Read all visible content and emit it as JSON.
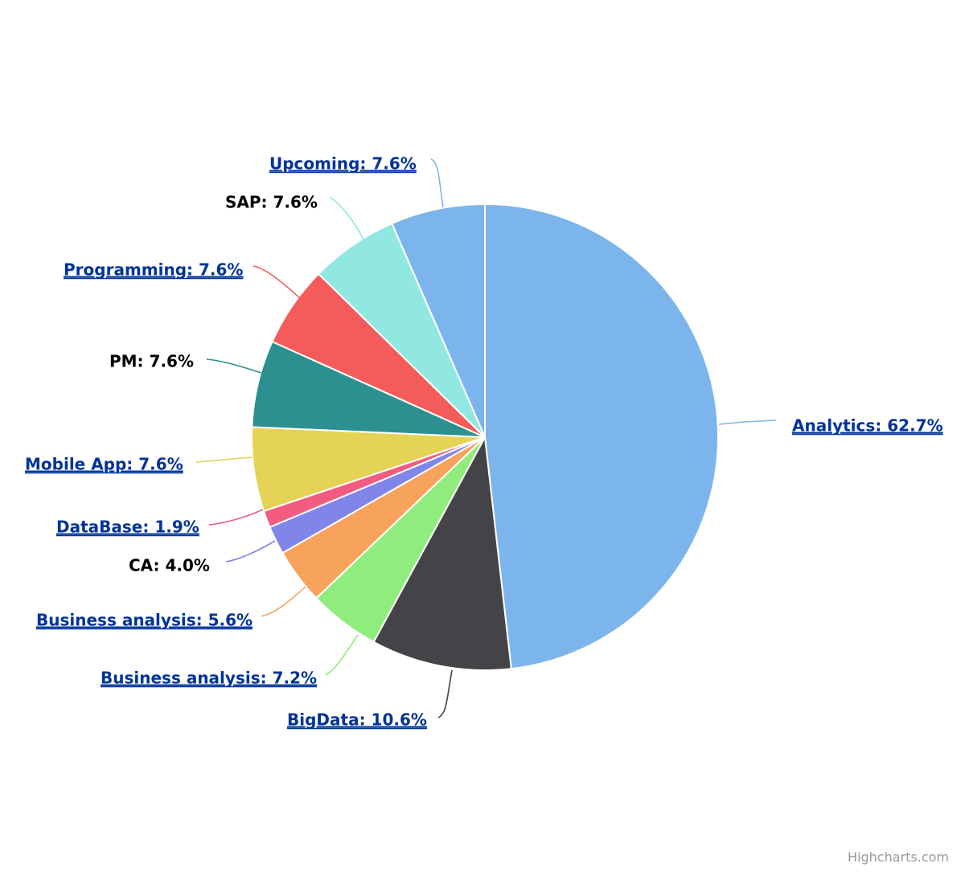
{
  "chart_data": {
    "type": "pie",
    "title": "",
    "slices": [
      {
        "name": "Analytics",
        "value": 62.7,
        "color": "#7cb5ec",
        "link": true
      },
      {
        "name": "BigData",
        "value": 10.6,
        "color": "#434348",
        "link": true
      },
      {
        "name": "Business analysis",
        "value": 7.2,
        "color": "#90ed7d",
        "link": true
      },
      {
        "name": "Business analysis",
        "value": 5.6,
        "color": "#f7a35c",
        "link": true
      },
      {
        "name": "CA",
        "value": 4.0,
        "color": "#8085e9",
        "link": false
      },
      {
        "name": "DataBase",
        "value": 1.9,
        "color": "#f15c80",
        "link": true
      },
      {
        "name": "Mobile App",
        "value": 7.6,
        "color": "#e4d354",
        "link": true
      },
      {
        "name": "PM",
        "value": 7.6,
        "color": "#2b908f",
        "link": false
      },
      {
        "name": "Programming",
        "value": 7.6,
        "color": "#f45b5b",
        "link": true
      },
      {
        "name": "SAP",
        "value": 7.6,
        "color": "#91e8e1",
        "link": false
      },
      {
        "name": "Upcoming",
        "value": 7.6,
        "color": "#7cb5ec",
        "link": true
      }
    ],
    "data_labels": [
      "Analytics: 62.7%",
      "BigData: 10.6%",
      "Business analysis: 7.2%",
      "Business analysis: 5.6%",
      "CA: 4.0%",
      "DataBase: 1.9%",
      "Mobile App: 7.6%",
      "PM: 7.6%",
      "Programming: 7.6%",
      "SAP: 7.6%",
      "Upcoming: 7.6%"
    ],
    "legend": "none"
  },
  "credits": "Highcharts.com"
}
